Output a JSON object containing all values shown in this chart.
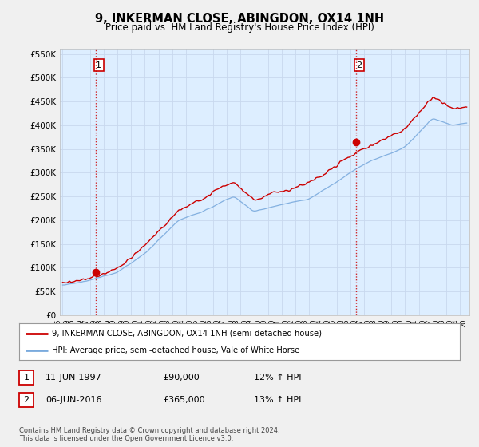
{
  "title": "9, INKERMAN CLOSE, ABINGDON, OX14 1NH",
  "subtitle": "Price paid vs. HM Land Registry's House Price Index (HPI)",
  "legend_line1": "9, INKERMAN CLOSE, ABINGDON, OX14 1NH (semi-detached house)",
  "legend_line2": "HPI: Average price, semi-detached house, Vale of White Horse",
  "footer": "Contains HM Land Registry data © Crown copyright and database right 2024.\nThis data is licensed under the Open Government Licence v3.0.",
  "annotation1_date": "11-JUN-1997",
  "annotation1_price": "£90,000",
  "annotation1_hpi": "12% ↑ HPI",
  "annotation2_date": "06-JUN-2016",
  "annotation2_price": "£365,000",
  "annotation2_hpi": "13% ↑ HPI",
  "sale1_x": 1997.44,
  "sale1_y": 90000,
  "sale2_x": 2016.44,
  "sale2_y": 365000,
  "ylim": [
    0,
    560000
  ],
  "xlim": [
    1994.8,
    2024.7
  ],
  "red_line_color": "#cc0000",
  "blue_line_color": "#7aaadd",
  "plot_bg_color": "#ddeeff",
  "grid_color": "#c8d8ee",
  "dashed_line_color": "#cc0000",
  "fig_bg_color": "#f0f0f0"
}
